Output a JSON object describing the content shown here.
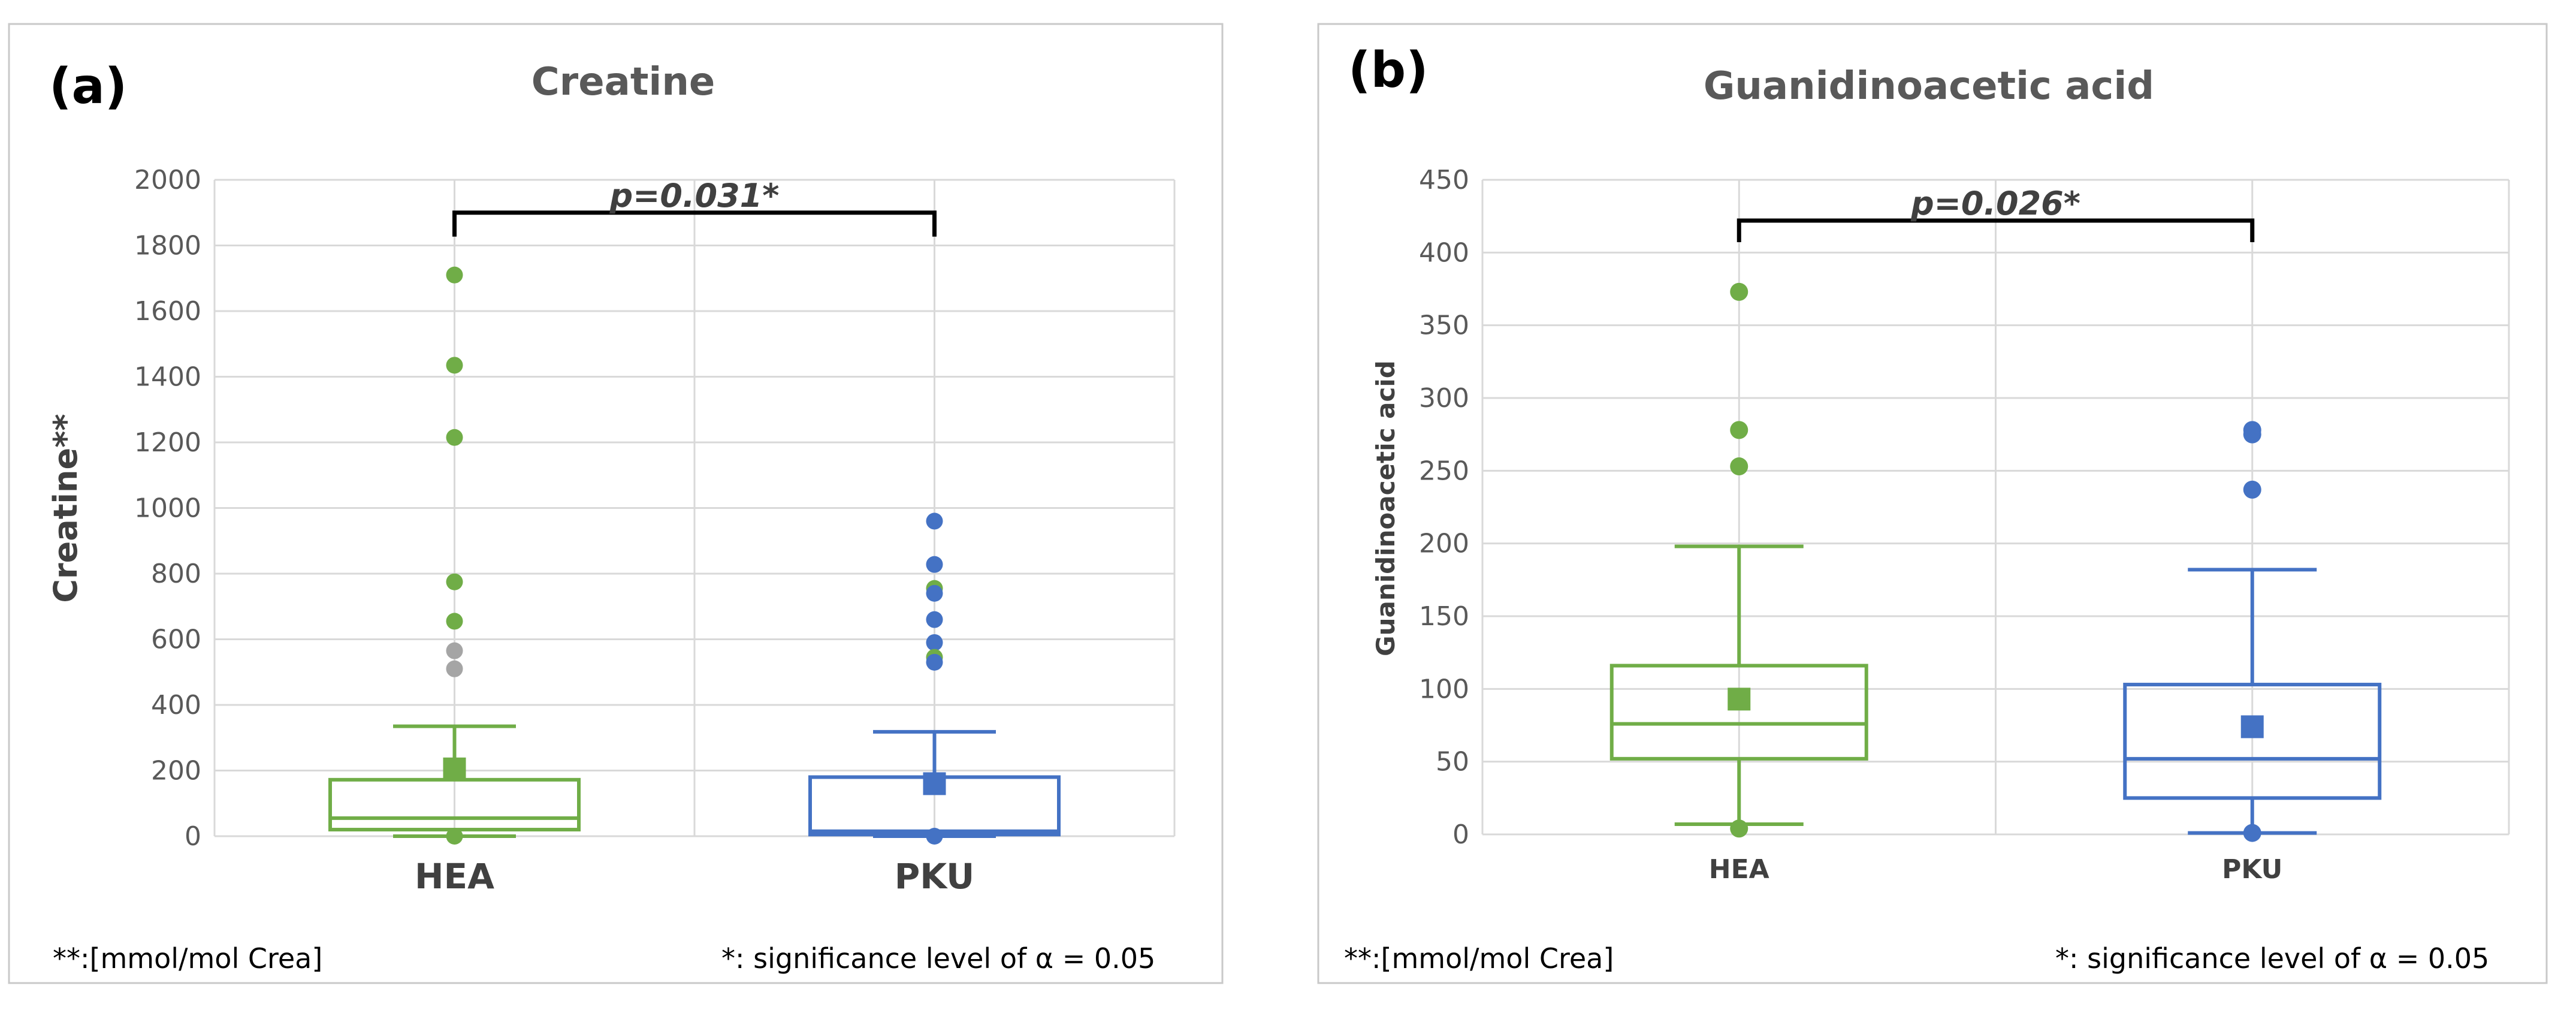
{
  "colors": {
    "HEA": "#70ad47",
    "PKU": "#4472c4",
    "outlier_grey": "#a5a5a5",
    "bracket": "#000000"
  },
  "chart_data": [
    {
      "type": "box",
      "panel_label": "(a)",
      "title": "Creatine",
      "ylabel": "Creatine**",
      "ylim": [
        0,
        2000
      ],
      "yticks": [
        0,
        200,
        400,
        600,
        800,
        1000,
        1200,
        1400,
        1600,
        1800,
        2000
      ],
      "grid": true,
      "categories": [
        "HEA",
        "PKU"
      ],
      "boxes": [
        {
          "name": "HEA",
          "color": "#70ad47",
          "whisker_low": 0,
          "q1": 20,
          "median": 55,
          "q3": 172,
          "whisker_high": 335,
          "mean": 205,
          "outliers": [
            {
              "value": 1710,
              "color": "#70ad47"
            },
            {
              "value": 1435,
              "color": "#70ad47"
            },
            {
              "value": 1215,
              "color": "#70ad47"
            },
            {
              "value": 775,
              "color": "#70ad47"
            },
            {
              "value": 655,
              "color": "#70ad47"
            },
            {
              "value": 565,
              "color": "#a5a5a5"
            },
            {
              "value": 510,
              "color": "#a5a5a5"
            },
            {
              "value": 0,
              "color": "#70ad47"
            }
          ]
        },
        {
          "name": "PKU",
          "color": "#4472c4",
          "whisker_low": 0,
          "q1": 5,
          "median": 15,
          "q3": 180,
          "whisker_high": 318,
          "mean": 160,
          "outliers": [
            {
              "value": 960,
              "color": "#4472c4"
            },
            {
              "value": 828,
              "color": "#4472c4"
            },
            {
              "value": 755,
              "color": "#70ad47"
            },
            {
              "value": 740,
              "color": "#4472c4"
            },
            {
              "value": 660,
              "color": "#4472c4"
            },
            {
              "value": 590,
              "color": "#4472c4"
            },
            {
              "value": 545,
              "color": "#70ad47"
            },
            {
              "value": 530,
              "color": "#4472c4"
            },
            {
              "value": 0,
              "color": "#4472c4"
            }
          ]
        }
      ],
      "significance": {
        "label": "p=0.031*",
        "y": 1900
      },
      "footnote_left": "**:[mmol/mol Crea]",
      "footnote_right": "*: significance level of α = 0.05"
    },
    {
      "type": "box",
      "panel_label": "(b)",
      "title": "Guanidinoacetic acid",
      "ylabel": "Guanidinoacetic acid",
      "ylim": [
        0,
        450
      ],
      "yticks": [
        0,
        50,
        100,
        150,
        200,
        250,
        300,
        350,
        400,
        450
      ],
      "grid": true,
      "categories": [
        "HEA",
        "PKU"
      ],
      "boxes": [
        {
          "name": "HEA",
          "color": "#70ad47",
          "whisker_low": 7,
          "q1": 52,
          "median": 76,
          "q3": 116,
          "whisker_high": 198,
          "mean": 93,
          "outliers": [
            {
              "value": 373,
              "color": "#70ad47"
            },
            {
              "value": 278,
              "color": "#70ad47"
            },
            {
              "value": 253,
              "color": "#70ad47"
            },
            {
              "value": 4,
              "color": "#70ad47"
            }
          ]
        },
        {
          "name": "PKU",
          "color": "#4472c4",
          "whisker_low": 1,
          "q1": 25,
          "median": 52,
          "q3": 103,
          "whisker_high": 182,
          "mean": 74,
          "outliers": [
            {
              "value": 278,
              "color": "#4472c4"
            },
            {
              "value": 275,
              "color": "#4472c4"
            },
            {
              "value": 237,
              "color": "#4472c4"
            },
            {
              "value": 1,
              "color": "#4472c4"
            }
          ]
        }
      ],
      "significance": {
        "label": "p=0.026*",
        "y": 422
      },
      "footnote_left": "**:[mmol/mol Crea]",
      "footnote_right": "*: significance level of α = 0.05"
    }
  ]
}
